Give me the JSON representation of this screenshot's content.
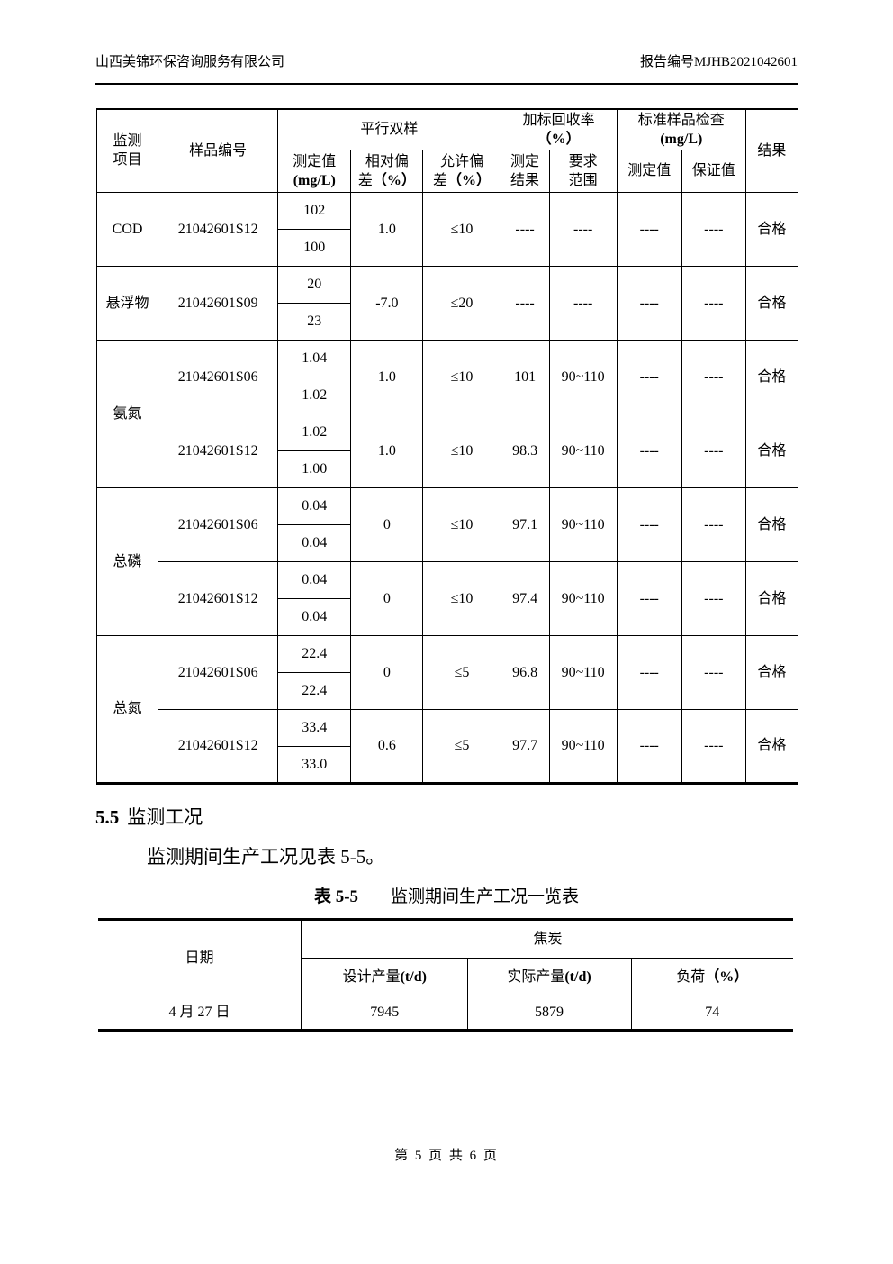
{
  "page_header": {
    "company": "山西美锦环保咨询服务有限公司",
    "report_no": "报告编号MJHB2021042601"
  },
  "qc_table": {
    "header": {
      "item": "监测\n项目",
      "sample_id": "样品编号",
      "parallel": "平行双样",
      "recovery_label": "加标回收率\n",
      "recovery_unit": "（%）",
      "standard_label": "标准样品检查\n",
      "standard_unit": "(mg/L)",
      "result": "结果",
      "measured_label": "测定值\n",
      "measured_unit": "(mg/L)",
      "rel_dev_label": "相对偏\n差",
      "rel_dev_unit": "（%）",
      "allow_dev_label": "允许偏\n差",
      "allow_dev_unit": "（%）",
      "recovery_result": "测定\n结果",
      "recovery_range": "要求\n范围",
      "std_measured": "测定值",
      "std_guaranteed": "保证值"
    },
    "groups": [
      {
        "item": "COD",
        "samples": [
          {
            "id": "21042601S12",
            "values": [
              "102",
              "100"
            ],
            "rel_dev": "1.0",
            "allow_dev": "≤10",
            "recovery_result": "----",
            "recovery_range": "----",
            "std_measured": "----",
            "std_guaranteed": "----",
            "verdict": "合格"
          }
        ]
      },
      {
        "item": "悬浮物",
        "samples": [
          {
            "id": "21042601S09",
            "values": [
              "20",
              "23"
            ],
            "rel_dev": "-7.0",
            "allow_dev": "≤20",
            "recovery_result": "----",
            "recovery_range": "----",
            "std_measured": "----",
            "std_guaranteed": "----",
            "verdict": "合格"
          }
        ]
      },
      {
        "item": "氨氮",
        "samples": [
          {
            "id": "21042601S06",
            "values": [
              "1.04",
              "1.02"
            ],
            "rel_dev": "1.0",
            "allow_dev": "≤10",
            "recovery_result": "101",
            "recovery_range": "90~110",
            "std_measured": "----",
            "std_guaranteed": "----",
            "verdict": "合格"
          },
          {
            "id": "21042601S12",
            "values": [
              "1.02",
              "1.00"
            ],
            "rel_dev": "1.0",
            "allow_dev": "≤10",
            "recovery_result": "98.3",
            "recovery_range": "90~110",
            "std_measured": "----",
            "std_guaranteed": "----",
            "verdict": "合格"
          }
        ]
      },
      {
        "item": "总磷",
        "samples": [
          {
            "id": "21042601S06",
            "values": [
              "0.04",
              "0.04"
            ],
            "rel_dev": "0",
            "allow_dev": "≤10",
            "recovery_result": "97.1",
            "recovery_range": "90~110",
            "std_measured": "----",
            "std_guaranteed": "----",
            "verdict": "合格"
          },
          {
            "id": "21042601S12",
            "values": [
              "0.04",
              "0.04"
            ],
            "rel_dev": "0",
            "allow_dev": "≤10",
            "recovery_result": "97.4",
            "recovery_range": "90~110",
            "std_measured": "----",
            "std_guaranteed": "----",
            "verdict": "合格"
          }
        ]
      },
      {
        "item": "总氮",
        "samples": [
          {
            "id": "21042601S06",
            "values": [
              "22.4",
              "22.4"
            ],
            "rel_dev": "0",
            "allow_dev": "≤5",
            "recovery_result": "96.8",
            "recovery_range": "90~110",
            "std_measured": "----",
            "std_guaranteed": "----",
            "verdict": "合格"
          },
          {
            "id": "21042601S12",
            "values": [
              "33.4",
              "33.0"
            ],
            "rel_dev": "0.6",
            "allow_dev": "≤5",
            "recovery_result": "97.7",
            "recovery_range": "90~110",
            "std_measured": "----",
            "std_guaranteed": "----",
            "verdict": "合格"
          }
        ]
      }
    ]
  },
  "section": {
    "number": "5.5",
    "title": "监测工况",
    "paragraph": "监测期间生产工况见表 5-5。"
  },
  "production_table": {
    "caption_prefix": "表 5-5",
    "caption_title": "监测期间生产工况一览表",
    "header": {
      "date": "日期",
      "product": "焦炭",
      "design_label": "设计产量",
      "design_unit": "(t/d)",
      "actual_label": "实际产量",
      "actual_unit": "(t/d)",
      "load_label": "负荷",
      "load_unit": "（%）"
    },
    "rows": [
      {
        "date": "4 月 27 日",
        "design": "7945",
        "actual": "5879",
        "load": "74"
      }
    ]
  },
  "footer": {
    "page_text": "第 5 页 共 6 页"
  }
}
